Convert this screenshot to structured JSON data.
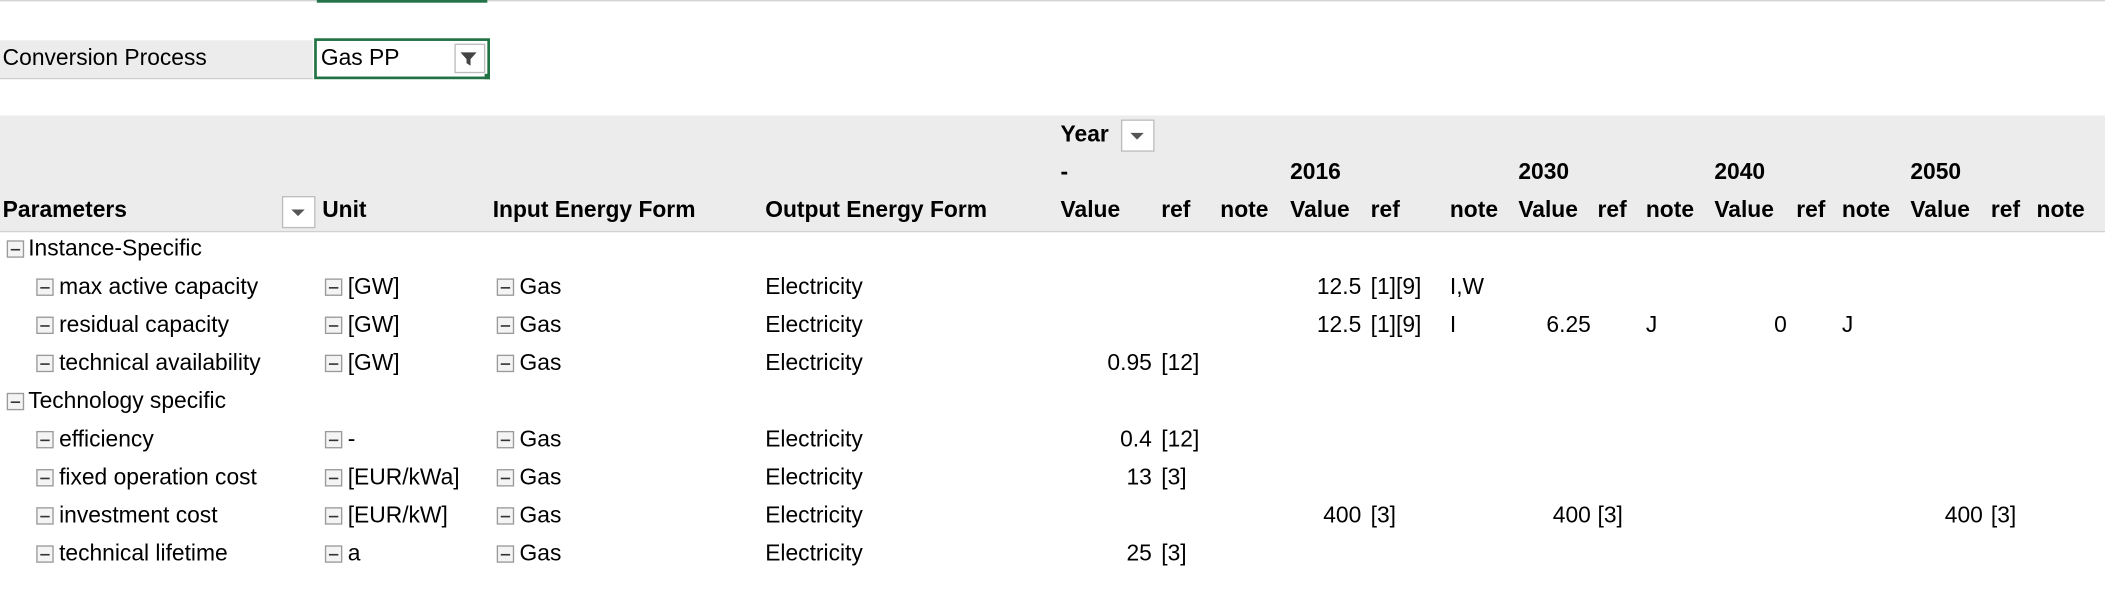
{
  "filter": {
    "label": "Conversion Process",
    "value": "Gas PP"
  },
  "header": {
    "year_label": "Year",
    "row_fields": [
      "Parameters",
      "Unit",
      "Input Energy Form",
      "Output Energy Form"
    ],
    "years": [
      "-",
      "2016",
      "2030",
      "2040",
      "2050"
    ],
    "subcolumns": [
      "Value",
      "ref",
      "note"
    ]
  },
  "groups": [
    {
      "name": "Instance-Specific",
      "rows": [
        {
          "parameter": "max active capacity",
          "unit": "[GW]",
          "input": "Gas",
          "output": "Electricity",
          "cells": [
            null,
            null,
            null,
            12.5,
            "[1][9]",
            "I,W",
            null,
            null,
            null,
            null,
            null,
            null,
            null,
            null,
            null
          ]
        },
        {
          "parameter": "residual capacity",
          "unit": "[GW]",
          "input": "Gas",
          "output": "Electricity",
          "cells": [
            null,
            null,
            null,
            12.5,
            "[1][9]",
            "I",
            6.25,
            null,
            "J",
            0,
            null,
            "J",
            null,
            null,
            null
          ]
        },
        {
          "parameter": "technical availability",
          "unit": "[GW]",
          "input": "Gas",
          "output": "Electricity",
          "cells": [
            0.95,
            "[12]",
            null,
            null,
            null,
            null,
            null,
            null,
            null,
            null,
            null,
            null,
            null,
            null,
            null
          ]
        }
      ]
    },
    {
      "name": "Technology specific",
      "rows": [
        {
          "parameter": "efficiency",
          "unit": "-",
          "input": "Gas",
          "output": "Electricity",
          "cells": [
            0.4,
            "[12]",
            null,
            null,
            null,
            null,
            null,
            null,
            null,
            null,
            null,
            null,
            null,
            null,
            null
          ]
        },
        {
          "parameter": "fixed operation cost",
          "unit": "[EUR/kWa]",
          "input": "Gas",
          "output": "Electricity",
          "cells": [
            13,
            "[3]",
            null,
            null,
            null,
            null,
            null,
            null,
            null,
            null,
            null,
            null,
            null,
            null,
            null
          ]
        },
        {
          "parameter": "investment cost",
          "unit": "[EUR/kW]",
          "input": "Gas",
          "output": "Electricity",
          "cells": [
            null,
            null,
            null,
            400,
            "[3]",
            null,
            400,
            "[3]",
            null,
            null,
            null,
            null,
            400,
            "[3]",
            null
          ]
        },
        {
          "parameter": "technical lifetime",
          "unit": "a",
          "input": "Gas",
          "output": "Electricity",
          "cells": [
            25,
            "[3]",
            null,
            null,
            null,
            null,
            null,
            null,
            null,
            null,
            null,
            null,
            null,
            null,
            null
          ]
        }
      ]
    }
  ]
}
